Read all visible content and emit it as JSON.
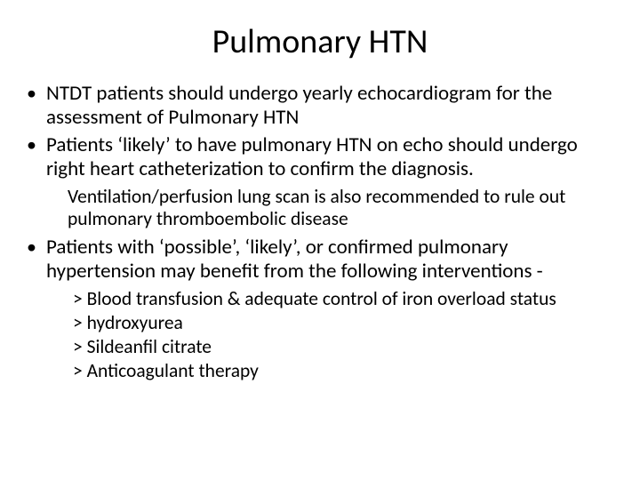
{
  "title": "Pulmonary HTN",
  "bullets": [
    {
      "text": "NTDT patients should undergo yearly echocardiogram for the assessment of Pulmonary HTN"
    },
    {
      "text": "Patients ‘likely’ to have pulmonary HTN on echo should undergo right heart catheterization to confirm the diagnosis.",
      "sub": "Ventilation/perfusion lung scan is also recommended to rule out pulmonary thromboembolic disease"
    },
    {
      "text": "Patients with ‘possible’, ‘likely’, or confirmed pulmonary hypertension may benefit from the following interventions -",
      "items": [
        "> Blood transfusion & adequate control of iron overload status",
        "> hydroxyurea",
        "> Sildeanfil citrate",
        "> Anticoagulant therapy"
      ]
    }
  ],
  "styling": {
    "slide_width": 720,
    "slide_height": 540,
    "background_color": "#ffffff",
    "text_color": "#000000",
    "font_family": "Calibri",
    "title_fontsize": 38,
    "title_align": "center",
    "body_fontsize": 23,
    "sub_fontsize": 21.5,
    "bullet_char": "•",
    "sub_prefix": ">",
    "line_height": 1.18
  }
}
